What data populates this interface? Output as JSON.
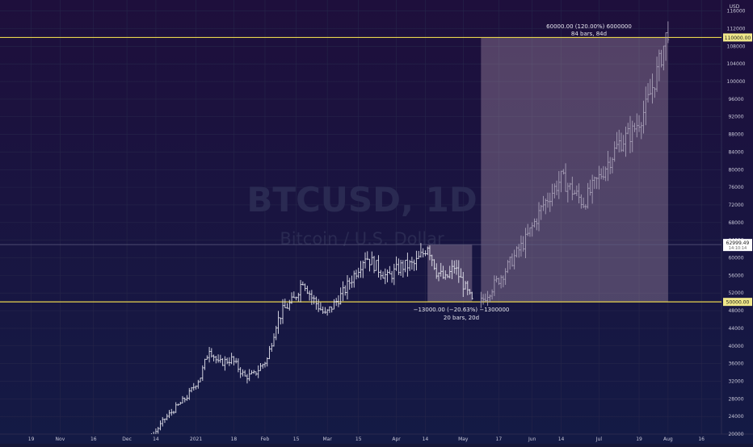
{
  "chart": {
    "watermark_symbol": "BTCUSD, 1D",
    "watermark_name": "Bitcoin / U.S. Dollar",
    "currency": "USD",
    "price_line_label": "62999.49",
    "countdown_label": "14:10:14",
    "measure_up": {
      "line1": "60000.00 (120.00%) 6000000",
      "line2": "84 bars, 84d"
    },
    "measure_down": {
      "line1": "−13000.00 (−20.63%) −1300000",
      "line2": "20 bars, 20d"
    }
  },
  "chart_data": {
    "type": "ohlc",
    "title": "",
    "symbol": "BTCUSD",
    "interval": "1D",
    "y_unit": "USD",
    "ylim": [
      20000,
      118500
    ],
    "y_ticks": [
      20000,
      24000,
      28000,
      32000,
      36000,
      40000,
      44000,
      48000,
      52000,
      56000,
      60000,
      64000,
      68000,
      72000,
      76000,
      80000,
      84000,
      88000,
      92000,
      96000,
      100000,
      104000,
      108000,
      112000,
      116000
    ],
    "x_ticks": [
      {
        "label": "19",
        "day": 0
      },
      {
        "label": "Nov",
        "day": 13
      },
      {
        "label": "16",
        "day": 28
      },
      {
        "label": "Dec",
        "day": 43
      },
      {
        "label": "14",
        "day": 56
      },
      {
        "label": "2021",
        "day": 74
      },
      {
        "label": "18",
        "day": 91
      },
      {
        "label": "Feb",
        "day": 105
      },
      {
        "label": "15",
        "day": 119
      },
      {
        "label": "Mar",
        "day": 133
      },
      {
        "label": "15",
        "day": 147
      },
      {
        "label": "Apr",
        "day": 164
      },
      {
        "label": "14",
        "day": 177
      },
      {
        "label": "May",
        "day": 194
      },
      {
        "label": "17",
        "day": 210
      },
      {
        "label": "Jun",
        "day": 225
      },
      {
        "label": "14",
        "day": 238
      },
      {
        "label": "Jul",
        "day": 255
      },
      {
        "label": "19",
        "day": 273
      },
      {
        "label": "Aug",
        "day": 286
      },
      {
        "label": "16",
        "day": 301
      }
    ],
    "x_range_days": [
      -14,
      310
    ],
    "levels": [
      {
        "price": 110000,
        "label": "110000.00"
      },
      {
        "price": 50000,
        "label": "50000.00"
      }
    ],
    "current_price": 62999.49,
    "measure_boxes": [
      {
        "from_day": 178,
        "to_day": 198,
        "from_price": 63000,
        "to_price": 50000,
        "direction": "down"
      },
      {
        "from_day": 202,
        "to_day": 286,
        "from_price": 50000,
        "to_price": 110000,
        "direction": "up"
      }
    ],
    "projection_anchors": [
      {
        "day": 202,
        "price": 50000
      },
      {
        "day": 212,
        "price": 56500
      },
      {
        "day": 222,
        "price": 64000
      },
      {
        "day": 230,
        "price": 72000
      },
      {
        "day": 238,
        "price": 78000
      },
      {
        "day": 248,
        "price": 72500
      },
      {
        "day": 256,
        "price": 79000
      },
      {
        "day": 264,
        "price": 86000
      },
      {
        "day": 270,
        "price": 88500
      },
      {
        "day": 276,
        "price": 94000
      },
      {
        "day": 281,
        "price": 102000
      },
      {
        "day": 286,
        "price": 112000
      }
    ],
    "price_anchors": [
      {
        "day": 0,
        "price": 11700
      },
      {
        "day": 10,
        "price": 13100
      },
      {
        "day": 18,
        "price": 15600
      },
      {
        "day": 28,
        "price": 16600
      },
      {
        "day": 38,
        "price": 18100
      },
      {
        "day": 46,
        "price": 19000
      },
      {
        "day": 54,
        "price": 19200
      },
      {
        "day": 60,
        "price": 23500
      },
      {
        "day": 66,
        "price": 26500
      },
      {
        "day": 70,
        "price": 28500
      },
      {
        "day": 76,
        "price": 33000
      },
      {
        "day": 80,
        "price": 39500
      },
      {
        "day": 84,
        "price": 36000
      },
      {
        "day": 90,
        "price": 37000
      },
      {
        "day": 96,
        "price": 33000
      },
      {
        "day": 100,
        "price": 33500
      },
      {
        "day": 106,
        "price": 37000
      },
      {
        "day": 110,
        "price": 45000
      },
      {
        "day": 113,
        "price": 48000
      },
      {
        "day": 118,
        "price": 50500
      },
      {
        "day": 122,
        "price": 55000
      },
      {
        "day": 126,
        "price": 51000
      },
      {
        "day": 132,
        "price": 47000
      },
      {
        "day": 136,
        "price": 49500
      },
      {
        "day": 140,
        "price": 52000
      },
      {
        "day": 146,
        "price": 57000
      },
      {
        "day": 150,
        "price": 60500
      },
      {
        "day": 156,
        "price": 57500
      },
      {
        "day": 160,
        "price": 55500
      },
      {
        "day": 166,
        "price": 58000
      },
      {
        "day": 172,
        "price": 58500
      },
      {
        "day": 176,
        "price": 61000
      },
      {
        "day": 178,
        "price": 63000
      },
      {
        "day": 182,
        "price": 57000
      },
      {
        "day": 186,
        "price": 55000
      },
      {
        "day": 190,
        "price": 58000
      },
      {
        "day": 194,
        "price": 54000
      },
      {
        "day": 198,
        "price": 50000
      }
    ],
    "volatility": 0.035
  }
}
